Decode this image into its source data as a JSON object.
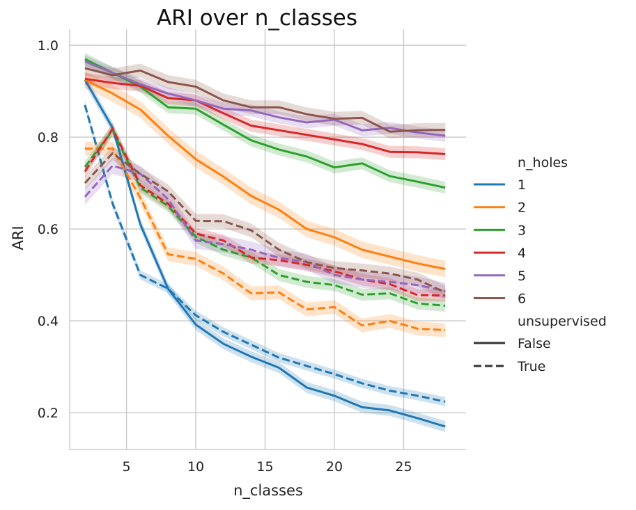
{
  "chart_data": {
    "type": "line",
    "title": "ARI over n_classes",
    "xlabel": "n_classes",
    "ylabel": "ARI",
    "xlim": [
      0.9,
      29.5
    ],
    "ylim": [
      0.12,
      1.035
    ],
    "x_ticks": [
      5,
      10,
      15,
      20,
      25
    ],
    "y_ticks": [
      0.2,
      0.4,
      0.6,
      0.8,
      1.0
    ],
    "y_tick_labels": [
      "0.2",
      "0.4",
      "0.6",
      "0.8",
      "1.0"
    ],
    "grid": true,
    "x": [
      2,
      4,
      6,
      8,
      10,
      12,
      14,
      16,
      18,
      20,
      22,
      24,
      26,
      28
    ],
    "hue_title": "n_holes",
    "style_title": "unsupervised",
    "colors": {
      "1": "#1f77b4",
      "2": "#ff7f0e",
      "3": "#2ca02c",
      "4": "#d62728",
      "5": "#9467bd",
      "6": "#8c564b"
    },
    "legend": {
      "position": "right",
      "hue_entries": [
        {
          "label": "1",
          "color": "#1f77b4"
        },
        {
          "label": "2",
          "color": "#ff7f0e"
        },
        {
          "label": "3",
          "color": "#2ca02c"
        },
        {
          "label": "4",
          "color": "#d62728"
        },
        {
          "label": "5",
          "color": "#9467bd"
        },
        {
          "label": "6",
          "color": "#8c564b"
        }
      ],
      "style_entries": [
        {
          "label": "False",
          "dash": "solid"
        },
        {
          "label": "True",
          "dash": "dashed"
        }
      ]
    },
    "series": [
      {
        "name": "1",
        "unsupervised": "False",
        "color": "#1f77b4",
        "dashed": false,
        "ci": 0.012,
        "values": [
          0.925,
          0.82,
          0.61,
          0.47,
          0.392,
          0.35,
          0.322,
          0.298,
          0.255,
          0.237,
          0.212,
          0.205,
          0.188,
          0.17
        ]
      },
      {
        "name": "1",
        "unsupervised": "True",
        "color": "#1f77b4",
        "dashed": true,
        "ci": 0.01,
        "values": [
          0.87,
          0.655,
          0.5,
          0.47,
          0.412,
          0.376,
          0.348,
          0.32,
          0.302,
          0.284,
          0.264,
          0.248,
          0.237,
          0.224
        ]
      },
      {
        "name": "2",
        "unsupervised": "False",
        "color": "#ff7f0e",
        "dashed": false,
        "ci": 0.018,
        "values": [
          0.925,
          0.895,
          0.86,
          0.803,
          0.752,
          0.714,
          0.672,
          0.642,
          0.6,
          0.582,
          0.555,
          0.54,
          0.525,
          0.513
        ]
      },
      {
        "name": "2",
        "unsupervised": "True",
        "color": "#ff7f0e",
        "dashed": true,
        "ci": 0.015,
        "values": [
          0.775,
          0.775,
          0.668,
          0.545,
          0.535,
          0.503,
          0.46,
          0.462,
          0.425,
          0.43,
          0.39,
          0.4,
          0.383,
          0.38
        ]
      },
      {
        "name": "3",
        "unsupervised": "False",
        "color": "#2ca02c",
        "dashed": false,
        "ci": 0.013,
        "values": [
          0.97,
          0.94,
          0.91,
          0.865,
          0.862,
          0.827,
          0.793,
          0.773,
          0.758,
          0.734,
          0.743,
          0.715,
          0.703,
          0.69
        ]
      },
      {
        "name": "3",
        "unsupervised": "True",
        "color": "#2ca02c",
        "dashed": true,
        "ci": 0.013,
        "values": [
          0.735,
          0.815,
          0.69,
          0.65,
          0.583,
          0.555,
          0.538,
          0.5,
          0.485,
          0.478,
          0.457,
          0.46,
          0.438,
          0.433
        ]
      },
      {
        "name": "4",
        "unsupervised": "False",
        "color": "#d62728",
        "dashed": false,
        "ci": 0.013,
        "values": [
          0.927,
          0.918,
          0.912,
          0.885,
          0.88,
          0.852,
          0.825,
          0.815,
          0.805,
          0.795,
          0.785,
          0.768,
          0.767,
          0.763
        ]
      },
      {
        "name": "4",
        "unsupervised": "True",
        "color": "#d62728",
        "dashed": true,
        "ci": 0.013,
        "values": [
          0.725,
          0.818,
          0.695,
          0.655,
          0.59,
          0.575,
          0.538,
          0.532,
          0.522,
          0.508,
          0.49,
          0.48,
          0.456,
          0.455
        ]
      },
      {
        "name": "5",
        "unsupervised": "False",
        "color": "#9467bd",
        "dashed": false,
        "ci": 0.013,
        "values": [
          0.965,
          0.94,
          0.915,
          0.895,
          0.88,
          0.862,
          0.858,
          0.843,
          0.832,
          0.838,
          0.815,
          0.82,
          0.81,
          0.803
        ]
      },
      {
        "name": "5",
        "unsupervised": "True",
        "color": "#9467bd",
        "dashed": true,
        "ci": 0.018,
        "values": [
          0.67,
          0.738,
          0.72,
          0.665,
          0.575,
          0.567,
          0.555,
          0.537,
          0.528,
          0.5,
          0.49,
          0.485,
          0.478,
          0.465
        ]
      },
      {
        "name": "6",
        "unsupervised": "False",
        "color": "#8c564b",
        "dashed": false,
        "ci": 0.015,
        "values": [
          0.95,
          0.935,
          0.945,
          0.92,
          0.91,
          0.88,
          0.865,
          0.865,
          0.85,
          0.84,
          0.842,
          0.812,
          0.815,
          0.816
        ]
      },
      {
        "name": "6",
        "unsupervised": "True",
        "color": "#8c564b",
        "dashed": true,
        "ci": 0.015,
        "values": [
          0.7,
          0.765,
          0.72,
          0.682,
          0.618,
          0.617,
          0.597,
          0.555,
          0.528,
          0.515,
          0.51,
          0.503,
          0.49,
          0.462
        ]
      }
    ]
  }
}
